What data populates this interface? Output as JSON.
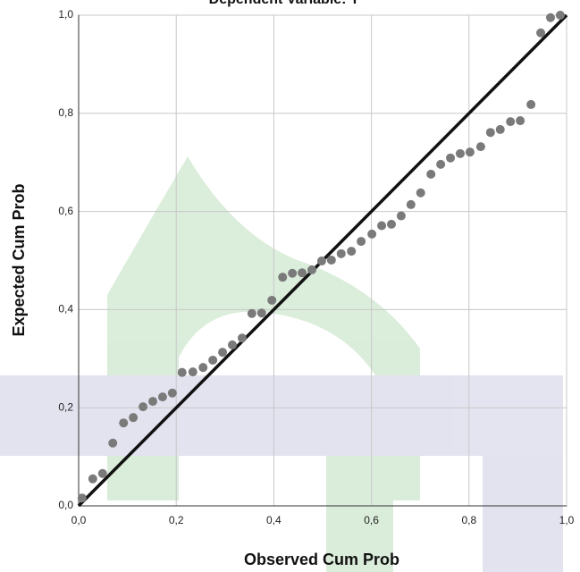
{
  "chart_data": {
    "type": "scatter",
    "title": "Dependent Variable: Y",
    "x_label": "Observed Cum Prob",
    "y_label": "Expected Cum Prob",
    "color": "#7a7a7a",
    "grid": true,
    "xlim": [
      0,
      1
    ],
    "ylim": [
      0,
      1
    ],
    "xticks": [
      {
        "value": 0,
        "label": "0,0"
      },
      {
        "value": 0.2,
        "label": "0,2"
      },
      {
        "value": 0.4,
        "label": "0,4"
      },
      {
        "value": 0.6,
        "label": "0,6"
      },
      {
        "value": 0.8,
        "label": "0,8"
      },
      {
        "value": 1,
        "label": "1,0"
      }
    ],
    "yticks": [
      {
        "value": 0,
        "label": "0,0"
      },
      {
        "value": 0.2,
        "label": "0,2"
      },
      {
        "value": 0.4,
        "label": "0,4"
      },
      {
        "value": 0.6,
        "label": "0,6"
      },
      {
        "value": 0.8,
        "label": "0,8"
      },
      {
        "value": 1,
        "label": "1,0"
      }
    ],
    "x": [
      0.007,
      0.029,
      0.049,
      0.07,
      0.092,
      0.112,
      0.132,
      0.152,
      0.172,
      0.192,
      0.212,
      0.234,
      0.255,
      0.275,
      0.295,
      0.315,
      0.335,
      0.355,
      0.375,
      0.396,
      0.418,
      0.438,
      0.458,
      0.478,
      0.498,
      0.518,
      0.538,
      0.559,
      0.579,
      0.601,
      0.621,
      0.641,
      0.661,
      0.681,
      0.701,
      0.722,
      0.742,
      0.762,
      0.782,
      0.802,
      0.824,
      0.844,
      0.864,
      0.885,
      0.905,
      0.927,
      0.947,
      0.967,
      0.987
    ],
    "values": [
      0.016,
      0.055,
      0.066,
      0.128,
      0.169,
      0.18,
      0.202,
      0.213,
      0.222,
      0.23,
      0.272,
      0.273,
      0.282,
      0.297,
      0.313,
      0.328,
      0.342,
      0.392,
      0.393,
      0.419,
      0.466,
      0.474,
      0.475,
      0.481,
      0.499,
      0.501,
      0.514,
      0.519,
      0.539,
      0.554,
      0.571,
      0.574,
      0.591,
      0.614,
      0.638,
      0.676,
      0.696,
      0.709,
      0.718,
      0.721,
      0.732,
      0.761,
      0.767,
      0.783,
      0.785,
      0.818,
      0.964,
      0.995,
      1.0
    ]
  }
}
